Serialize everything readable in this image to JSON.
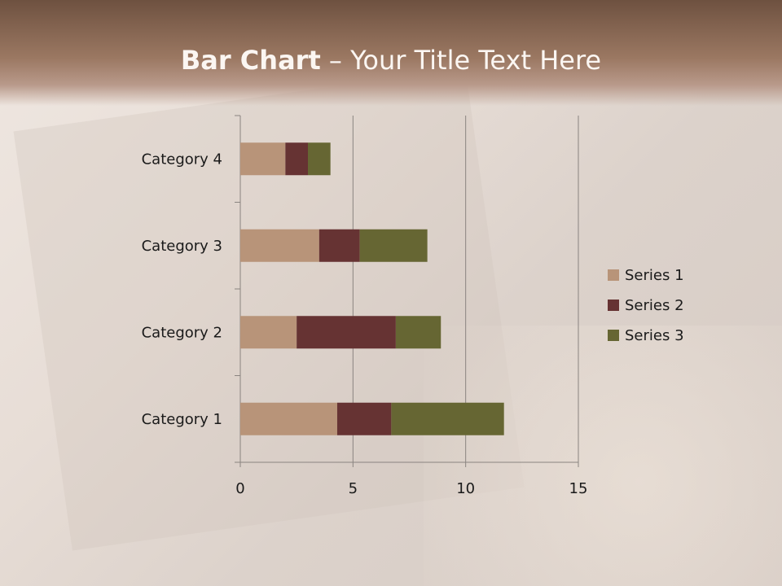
{
  "slide": {
    "title_bold": "Bar Chart",
    "title_rest": " – Your Title Text Here"
  },
  "chart_data": {
    "type": "bar",
    "orientation": "horizontal",
    "stacked": true,
    "categories": [
      "Category 1",
      "Category 2",
      "Category 3",
      "Category 4"
    ],
    "series": [
      {
        "name": "Series 1",
        "values": [
          4.3,
          2.5,
          3.5,
          2
        ],
        "color": "#b89479"
      },
      {
        "name": "Series 2",
        "values": [
          2.4,
          4.4,
          1.8,
          1
        ],
        "color": "#663333"
      },
      {
        "name": "Series 3",
        "values": [
          5,
          2,
          3,
          1
        ],
        "color": "#666633"
      }
    ],
    "xlim": [
      0,
      15
    ],
    "xticks": [
      "0",
      "5",
      "10",
      "15"
    ],
    "grid": true,
    "legend": "right"
  }
}
